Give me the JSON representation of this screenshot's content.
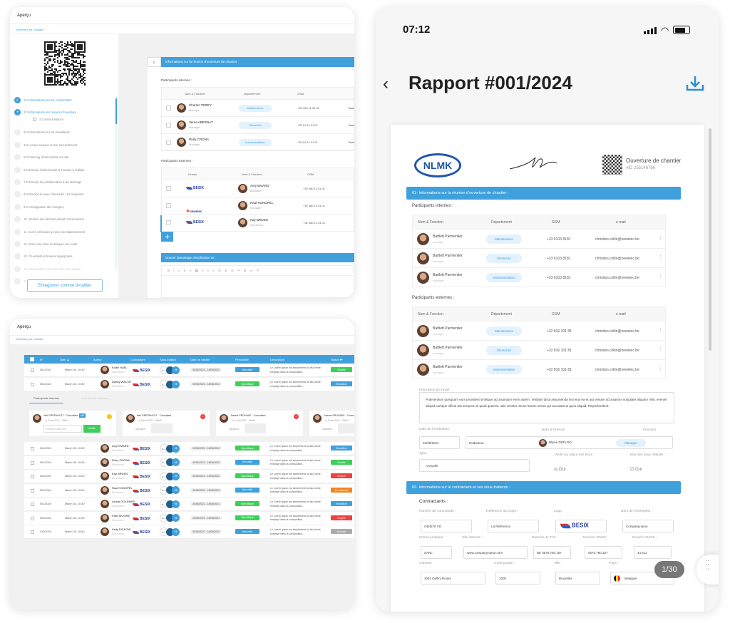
{
  "cardA": {
    "title": "Aperçu",
    "breadcrumb": "Ouverture de Chantier",
    "steps": [
      "1.0 Informations sur les contractants",
      "2.0 Informations sur réunion d'ouverture",
      "2.1 Sous-traitance",
      "3.0 Informations sur les travailleurs",
      "4.0 Locaux sociaux et leur raccordement",
      "5.0 Planning d'intervention sur site",
      "6.0 Zone(s) d'intervention & Travaux à réaliser",
      "7.0 Zone(s) de préfabrication & de stockage",
      "8.0 Besoins en eau / électricité / air comprimé",
      "9.0 Consignation des énergies",
      "10. Gestion des déchets durant l'interventions",
      "11. Accès véhicules & zones de stationnement",
      "12. Isoler une zone ou bloquer une route",
      "13. Co-activité & travaux superposés",
      "14. Manutention manuelle et/ou mécanique",
      "15. Manutention"
    ],
    "save_draft": "Enregistrer comme brouillon",
    "section_num": "2.",
    "section_title": "Informations sur la réunion d'ouverture de chantier :",
    "internal_label": "Participants internes :",
    "internal_headers": [
      "Nom & Fonction",
      "Département",
      "GSM"
    ],
    "internal": [
      {
        "name": "Charles TERRY",
        "role": "Manager",
        "dept": "Maintenance",
        "gsm": "+32 490 11 01 01",
        "extra": "Barle"
      },
      {
        "name": "Verna ABERNAT",
        "role": "Manager",
        "dept": "Electricité",
        "gsm": "+32 01 11 01 01",
        "extra": "Barle"
      },
      {
        "name": "Ruby CRONA",
        "role": "Manager",
        "dept": "Instrumentation",
        "gsm": "+32 01 11 01 01",
        "extra": "Barle"
      }
    ],
    "external_label": "Participants externes :",
    "external_headers": [
      "Firmes",
      "Nom & Fonction",
      "GSM"
    ],
    "external": [
      {
        "firm": "BESIX",
        "name": "Amy EMARD",
        "role": "Manager",
        "gsm": "+32 480 11 01 01"
      },
      {
        "firm": "newelec",
        "name": "Raul KONOPEL",
        "role": "Manager",
        "gsm": "+32 480 11 01 01"
      },
      {
        "firm": "BESIX",
        "name": "Kay BRUEN",
        "role": "Electricien",
        "gsm": "+32 480 11 01 01"
      }
    ],
    "add_label": "+",
    "explain_title": "Donner davantage d'explication ici :",
    "toolbar": [
      "B",
      "I",
      "U",
      "S",
      "A",
      "▦",
      "≡",
      "≡",
      "≡",
      "☰",
      "☰",
      "☰",
      "⚭",
      "⊡",
      "▭",
      "✎"
    ]
  },
  "cardB": {
    "title": "Aperçu",
    "breadcrumb": "Ouverture de chantier",
    "headers": [
      "N°",
      "Date ▲",
      "Auteur",
      "Contractant",
      "Sous-traitant",
      "Date de validité",
      "Périodicité",
      "Description",
      "Status ▾▾"
    ],
    "rows_top": [
      {
        "num": "001/2024",
        "date": "March 30, 19:30",
        "name": "Kollie HUEL",
        "role": "Electricien",
        "firm": "BESIX",
        "validity": "30/05/2022 - 18/06/2022",
        "period": "Annuelle",
        "desc": "Le Lorem Ipsum est simplement du faux texte employé dans la composition...",
        "status": "Publié"
      },
      {
        "num": "001/2024",
        "date": "March 30, 19:30",
        "name": "Danny WALSH",
        "role": "Electricien",
        "firm": "BESIX",
        "validity": "30/05/2022 - 18/06/2022",
        "period": "Spécifique",
        "desc": "Le Lorem Ipsum est simplement du faux texte employé dans la composition...",
        "status": "Brouillon"
      }
    ],
    "tabs": [
      "Participants internes",
      "Participants externes"
    ],
    "participants": [
      {
        "name": "Neil GREENHOLT",
        "role": "Consultant",
        "badge": "MH",
        "date": "8 avril 2021 - 09h00",
        "pin_placeholder": "Entrez le code PIN",
        "verify": "Vérifier"
      },
      {
        "name": "Neil GREENHOLT",
        "role": "Consultant",
        "date": "8 avril 2021 - 09h00",
        "sig": "Signature"
      },
      {
        "name": "Joanne PROHASK",
        "role": "Consultant",
        "date": "8 avril 2021 - 09h00",
        "sig": "Signature"
      },
      {
        "name": "Joanna PROHASK",
        "role": "Consultant",
        "date": "8 avril 2021 - 09h00",
        "sig": "Signature"
      }
    ],
    "rows": [
      {
        "num": "001/2024",
        "date": "March 30, 19:30",
        "name": "Amy EMARD",
        "role": "Electricien",
        "firm": "BESIX",
        "validity": "30/05/2022 - 18/06/2022",
        "period": "Spécifique",
        "desc": "Le Lorem Ipsum est simplement du faux texte employé dans la composition...",
        "status": "Brouillon"
      },
      {
        "num": "001/2024",
        "date": "March 30, 19:30",
        "name": "Ruby CRONA",
        "role": "Electricien",
        "firm": "BESIX",
        "validity": "30/05/2022 - 18/06/2022",
        "period": "Annuelle",
        "desc": "Le Lorem Ipsum est simplement du faux texte employé dans la composition...",
        "status": "Publié"
      },
      {
        "num": "001/2024",
        "date": "March 30, 19:20",
        "name": "Kay BRUEN",
        "role": "Electricien",
        "firm": "BESIX",
        "validity": "30/05/2022 - 18/06/2022",
        "period": "Spécifique",
        "desc": "Le Lorem Ipsum est simplement du faux texte employé dans la composition...",
        "status": "Expiré"
      },
      {
        "num": "001/2024",
        "date": "March 30, 19:20",
        "name": "Raul KONOPEL",
        "role": "Electricien",
        "firm": "BESIX",
        "validity": "30/05/2022 - 18/06/2022",
        "period": "Annuelle",
        "desc": "Le Lorem Ipsum est simplement du faux texte employé dans la composition...",
        "status": "En attente"
      },
      {
        "num": "001/2024",
        "date": "March 30, 10:30",
        "name": "Leona GOLDNER",
        "role": "Electricien",
        "firm": "BESIX",
        "validity": "30/06/2021 - 18/06/2021",
        "period": "Spécifique",
        "desc": "Le Lorem Ipsum est simplement du faux texte employé dans la composition...",
        "status": "Brouillon"
      },
      {
        "num": "001/2024",
        "date": "March 30, 10:30",
        "name": "Faith MOORE",
        "role": "Electricien",
        "firm": "BESIX",
        "validity": "30/06/2021 - 18/06/2021",
        "period": "Spécifique",
        "desc": "Le Lorem Ipsum est simplement du faux texte employé dans la composition...",
        "status": "Expiré"
      },
      {
        "num": "010/2024",
        "date": "March 30, 18:40",
        "name": "Kelly DICKOW",
        "role": "Electricien",
        "firm": "BESIX",
        "validity": "30/05/2022 - 18/06/2022",
        "period": "Annuelle",
        "desc": "Le Lorem Ipsum est simplement du faux texte employé dans la composition...",
        "status": "Annulé"
      }
    ],
    "subcontractor_more": "+8",
    "colors": {
      "Publié": "#3ecf5a",
      "Brouillon": "#3fa0dc",
      "Expiré": "#f04040",
      "En attente": "#f7821e",
      "Annulé": "#aaaaaa",
      "Annuelle": "#3fa0dc",
      "Spécifique": "#3ecf5a"
    }
  },
  "phone": {
    "time": "07:12",
    "title": "Rapport #001/2024",
    "page_indicator": "1/30",
    "doc": {
      "logo": "NLMK",
      "doc_title": "Ouverture de chantier",
      "doc_id": "#ID 255146766",
      "s1": "01- Informations sur la réunion d'ouverture de chantier :",
      "internal_label": "Participants internes :",
      "internal_headers": [
        "Nom & Fonction",
        "Département",
        "GSM",
        "e-mail"
      ],
      "internal": [
        {
          "name": "Bartlett Parmentier",
          "role": "manager",
          "dept": "Maintenance",
          "gsm": "+33 6103 8181",
          "email": "christian.collin@newelec.be"
        },
        {
          "name": "Bartlett Parmentier",
          "role": "manager",
          "dept": "Électricité",
          "gsm": "+33 6103 8181",
          "email": "christian.collin@newelec.be"
        },
        {
          "name": "Bartlett Parmentier",
          "role": "manager",
          "dept": "Instrumentation",
          "gsm": "+33 6103 8181",
          "email": "christian.collin@newelec.be"
        }
      ],
      "external_label": "Participants externes :",
      "external_headers": [
        "Nom & Fonction",
        "Département",
        "GSM",
        "e-mail"
      ],
      "external": [
        {
          "name": "Bartlett Parmentier",
          "role": "manager",
          "dept": "Maintenance",
          "gsm": "+32 816 101 81",
          "email": "christian.collin@newelec.be"
        },
        {
          "name": "Bartlett Parmentier",
          "role": "manager",
          "dept": "Électricité",
          "gsm": "+32 816 101 81",
          "email": "christian.collin@newelec.be"
        },
        {
          "name": "Bartlett Parmentier",
          "role": "manager",
          "dept": "Instrumentation",
          "gsm": "+32 816 101 81",
          "email": "christian.collin@newelec.be"
        }
      ],
      "desc_label": "Description du travail :",
      "desc": "Praesentium quisquam eum provident similique accusantium enim autem. Veritatis dicta assumenda nisi eius ea et aut veniam accusamus voluptate aliquam nihil, eveniet aliquid cumque officia aut tempora sit quod quaerat, odit, tenetur minus harum omnis qui accusamus quos aliquid. Reprehenderit.",
      "date_label": "Date de l'évaluation :",
      "date": "01/05/2021",
      "redactor_label": "Redacteur :",
      "name_label": "Nom & Prénom",
      "redactor": "Blaise DEFLDO",
      "function_label": "Fonction",
      "function": "Manager",
      "type_label": "Type :",
      "type": "Annuelle",
      "visit_label": "Visite sur place des lieux :",
      "visit": "Oui",
      "state_label": "État des lieux réalisés :",
      "state": "Oui",
      "s2": "02- Informations sur le contractant et ses sous-traitants :",
      "contractants": "Contractants :",
      "fields": [
        {
          "label": "Numéro de commande :",
          "value": "GB4576 VG"
        },
        {
          "label": "Référence du projet :",
          "value": "La Référence"
        },
        {
          "label": "Logo :",
          "value": "BESIX"
        },
        {
          "label": "Nom de l'entreprise :",
          "value": "Companyname"
        },
        {
          "label": "Forme juridique :",
          "value": "SARL"
        },
        {
          "label": "Site internet :",
          "value": "www.companyname.com"
        },
        {
          "label": "Numéro de TVA :",
          "value": "BE 0576.760.157"
        },
        {
          "label": "Numéro ONSS :",
          "value": "0576.760.157"
        },
        {
          "label": "Numéro NACE :",
          "value": "44.411"
        },
        {
          "label": "Adresse :",
          "value": "3081 Delfini Rooks"
        },
        {
          "label": "Code postal :",
          "value": "1000"
        },
        {
          "label": "Ville :",
          "value": "Bruxelles"
        },
        {
          "label": "Pays :",
          "value": "Belgique"
        }
      ]
    }
  }
}
